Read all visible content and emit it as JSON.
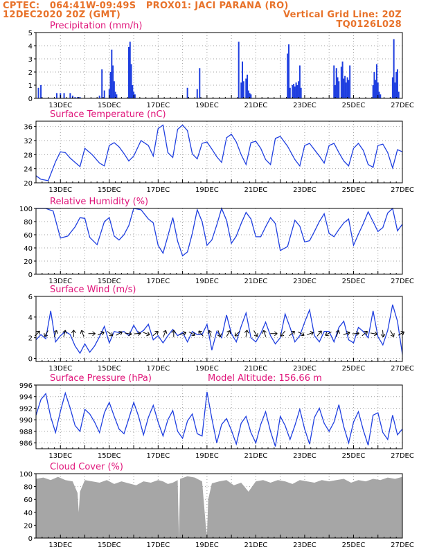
{
  "header": {
    "line1_left": "CPTEC:   064:41W-09:49S   PROX01: JACI PARANA (RO)",
    "line2_left": "12DEC2020 20Z (GMT)",
    "line2_right": "Vertical Grid Line: 20Z",
    "line3_right": "TQ0126L028",
    "color": "#e8722a"
  },
  "x_axis": {
    "tick_labels": [
      "13DEC",
      "15DEC",
      "17DEC",
      "19DEC",
      "21DEC",
      "23DEC",
      "25DEC",
      "27DEC"
    ],
    "tick_positions": [
      13,
      15,
      17,
      19,
      21,
      23,
      25,
      27
    ],
    "range": [
      12.0,
      27.0
    ],
    "units": "days of December 2020"
  },
  "colors": {
    "series": "#1f3fe0",
    "cloud": "#a6a6a6",
    "title": "#e0157a",
    "grid": "#a0a0a0"
  },
  "chart_data": [
    {
      "type": "bar",
      "id": "precip",
      "title": "Precipitation (mm/h)",
      "ylim": [
        0,
        5
      ],
      "yticks": [
        0,
        1,
        2,
        3,
        4,
        5
      ],
      "grid": true,
      "x": [
        12.1,
        12.2,
        12.85,
        13.0,
        13.15,
        13.4,
        13.5,
        13.6,
        13.7,
        13.8,
        14.6,
        14.7,
        14.8,
        15.0,
        15.05,
        15.1,
        15.15,
        15.2,
        15.25,
        15.3,
        15.8,
        15.85,
        15.9,
        15.95,
        16.0,
        16.05,
        18.2,
        18.6,
        18.7,
        20.3,
        20.4,
        20.45,
        20.5,
        20.6,
        20.65,
        20.7,
        20.75,
        20.8,
        22.3,
        22.35,
        22.4,
        22.5,
        22.55,
        22.6,
        22.65,
        22.7,
        22.75,
        22.8,
        22.85,
        24.2,
        24.25,
        24.3,
        24.35,
        24.4,
        24.5,
        24.55,
        24.6,
        24.65,
        24.7,
        24.75,
        24.8,
        24.85,
        25.8,
        25.85,
        25.9,
        25.95,
        26.0,
        26.05,
        26.1,
        26.6,
        26.65,
        26.7,
        26.75,
        26.8,
        26.85
      ],
      "values": [
        0.8,
        1.0,
        0.4,
        0.4,
        0.4,
        0.4,
        0.2,
        0.1,
        0.1,
        0.1,
        0.2,
        2.2,
        0.6,
        0.7,
        2.0,
        3.7,
        2.5,
        1.3,
        0.5,
        0.3,
        3.9,
        4.3,
        2.6,
        1.0,
        0.5,
        0.3,
        0.8,
        0.7,
        2.3,
        4.3,
        1.2,
        2.8,
        1.3,
        1.5,
        1.8,
        0.6,
        0.4,
        0.3,
        3.4,
        4.1,
        0.8,
        1.0,
        1.1,
        0.9,
        1.2,
        1.0,
        1.3,
        2.5,
        0.8,
        2.5,
        1.0,
        2.3,
        1.6,
        1.3,
        2.4,
        2.8,
        1.5,
        1.7,
        1.2,
        1.6,
        1.4,
        2.5,
        1.0,
        2.0,
        1.4,
        2.6,
        1.2,
        0.5,
        0.3,
        1.6,
        4.5,
        1.2,
        2.0,
        2.2,
        0.5
      ]
    },
    {
      "type": "line",
      "id": "temp",
      "title": "Surface Temperature (nC)",
      "ylim": [
        20,
        37.5
      ],
      "yticks": [
        20,
        24,
        28,
        32,
        36
      ],
      "grid": true,
      "x": [
        12.0,
        12.2,
        12.5,
        12.8,
        13.0,
        13.2,
        13.4,
        13.6,
        13.8,
        14.0,
        14.3,
        14.6,
        14.8,
        15.0,
        15.2,
        15.4,
        15.6,
        15.8,
        16.0,
        16.3,
        16.6,
        16.8,
        17.0,
        17.2,
        17.4,
        17.6,
        17.8,
        18.0,
        18.2,
        18.4,
        18.6,
        18.8,
        19.0,
        19.2,
        19.4,
        19.6,
        19.8,
        20.0,
        20.2,
        20.4,
        20.6,
        20.8,
        21.0,
        21.2,
        21.4,
        21.6,
        21.8,
        22.0,
        22.3,
        22.6,
        22.8,
        23.0,
        23.2,
        23.4,
        23.6,
        23.8,
        24.0,
        24.2,
        24.4,
        24.6,
        24.8,
        25.0,
        25.2,
        25.4,
        25.6,
        25.8,
        26.0,
        26.2,
        26.4,
        26.6,
        26.8,
        27.0
      ],
      "values": [
        22.0,
        21.0,
        20.6,
        26.0,
        28.8,
        28.6,
        27.0,
        25.8,
        24.6,
        29.8,
        28.0,
        25.6,
        24.8,
        30.6,
        31.4,
        30.2,
        28.3,
        26.2,
        27.6,
        32.0,
        30.6,
        27.6,
        35.4,
        36.4,
        28.6,
        27.2,
        35.2,
        36.4,
        34.8,
        28.2,
        26.8,
        31.2,
        31.6,
        29.6,
        27.4,
        25.8,
        32.8,
        33.8,
        31.6,
        28.0,
        25.2,
        31.4,
        31.8,
        29.8,
        26.6,
        25.2,
        32.6,
        33.2,
        30.4,
        26.6,
        24.8,
        30.6,
        31.2,
        29.4,
        27.6,
        25.6,
        30.6,
        31.2,
        28.6,
        26.2,
        24.8,
        29.8,
        31.2,
        29.2,
        25.2,
        24.4,
        30.6,
        31.0,
        28.6,
        24.2,
        29.4,
        28.8
      ]
    },
    {
      "type": "line",
      "id": "rh",
      "title": "Relative Humidity (%)",
      "ylim": [
        0,
        100
      ],
      "yticks": [
        0,
        20,
        40,
        60,
        80,
        100
      ],
      "grid": true,
      "x": [
        12.0,
        12.4,
        12.7,
        13.0,
        13.3,
        13.6,
        13.8,
        14.0,
        14.2,
        14.5,
        14.8,
        15.0,
        15.2,
        15.4,
        15.6,
        15.8,
        16.0,
        16.3,
        16.6,
        16.8,
        17.0,
        17.2,
        17.4,
        17.6,
        17.8,
        18.0,
        18.2,
        18.4,
        18.6,
        18.8,
        19.0,
        19.2,
        19.4,
        19.6,
        19.8,
        20.0,
        20.2,
        20.4,
        20.6,
        20.8,
        21.0,
        21.2,
        21.4,
        21.6,
        21.8,
        22.0,
        22.3,
        22.6,
        22.8,
        23.0,
        23.2,
        23.4,
        23.6,
        23.8,
        24.0,
        24.2,
        24.4,
        24.6,
        24.8,
        25.0,
        25.2,
        25.4,
        25.6,
        25.8,
        26.0,
        26.2,
        26.4,
        26.6,
        26.8,
        27.0
      ],
      "values": [
        100,
        100,
        96,
        55,
        58,
        72,
        86,
        85,
        56,
        45,
        80,
        86,
        58,
        52,
        60,
        74,
        100,
        98,
        84,
        78,
        44,
        32,
        58,
        86,
        50,
        28,
        34,
        62,
        98,
        80,
        44,
        52,
        75,
        100,
        82,
        47,
        58,
        77,
        94,
        84,
        57,
        57,
        72,
        86,
        77,
        36,
        42,
        82,
        73,
        49,
        51,
        65,
        80,
        92,
        62,
        57,
        68,
        78,
        84,
        44,
        61,
        77,
        95,
        80,
        65,
        71,
        93,
        100,
        66,
        76
      ]
    },
    {
      "type": "line",
      "id": "wind",
      "title": "Surface Wind (m/s)",
      "ylim": [
        -0.3,
        6
      ],
      "yticks": [
        0,
        2,
        4,
        6
      ],
      "grid": true,
      "x": [
        12.0,
        12.2,
        12.4,
        12.6,
        12.8,
        13.0,
        13.2,
        13.4,
        13.6,
        13.8,
        14.0,
        14.2,
        14.4,
        14.6,
        14.8,
        15.0,
        15.2,
        15.4,
        15.6,
        15.8,
        16.0,
        16.2,
        16.4,
        16.6,
        16.8,
        17.0,
        17.2,
        17.4,
        17.6,
        17.8,
        18.0,
        18.2,
        18.4,
        18.6,
        18.8,
        19.0,
        19.2,
        19.4,
        19.6,
        19.8,
        20.0,
        20.2,
        20.4,
        20.6,
        20.8,
        21.0,
        21.2,
        21.4,
        21.6,
        21.8,
        22.0,
        22.2,
        22.4,
        22.6,
        22.8,
        23.0,
        23.2,
        23.4,
        23.6,
        23.8,
        24.0,
        24.2,
        24.4,
        24.6,
        24.8,
        25.0,
        25.2,
        25.4,
        25.6,
        25.8,
        26.0,
        26.2,
        26.4,
        26.6,
        26.8,
        27.0
      ],
      "values": [
        1.8,
        2.3,
        1.9,
        4.6,
        1.6,
        2.2,
        2.6,
        2.3,
        1.2,
        0.5,
        1.4,
        0.6,
        1.2,
        2.1,
        3.1,
        1.5,
        2.6,
        2.5,
        2.6,
        2.2,
        3.2,
        2.4,
        2.7,
        3.3,
        1.8,
        2.2,
        1.5,
        2.2,
        2.8,
        2.2,
        2.5,
        1.6,
        2.6,
        2.3,
        2.3,
        3.3,
        0.8,
        2.6,
        2.0,
        4.2,
        2.4,
        1.6,
        3.1,
        4.4,
        2.0,
        1.6,
        2.4,
        3.5,
        2.2,
        1.4,
        2.0,
        4.3,
        3.0,
        1.6,
        2.2,
        3.5,
        4.7,
        2.2,
        1.6,
        2.6,
        2.6,
        1.6,
        3.0,
        3.6,
        1.8,
        1.5,
        3.0,
        2.6,
        2.0,
        4.6,
        2.1,
        1.3,
        2.7,
        5.2,
        3.6,
        0.4
      ],
      "arrow_direction_from_deg": [
        225,
        30,
        200,
        195,
        180,
        160,
        270,
        245,
        310,
        240,
        280,
        265,
        290,
        230,
        200,
        180,
        250,
        300,
        140,
        160,
        340,
        210,
        45,
        190,
        330,
        160,
        270,
        40,
        230,
        300,
        250,
        220,
        60,
        200,
        250,
        265,
        230,
        280,
        355,
        330,
        240
      ]
    },
    {
      "type": "line",
      "id": "pressure",
      "title": "Surface Pressure (hPa)",
      "annotation": "Model Altitude: 156.66 m",
      "ylim": [
        985,
        996
      ],
      "yticks": [
        986,
        988,
        990,
        992,
        994,
        996
      ],
      "grid": true,
      "x": [
        12.0,
        12.2,
        12.4,
        12.6,
        12.8,
        13.0,
        13.2,
        13.4,
        13.6,
        13.8,
        14.0,
        14.2,
        14.4,
        14.6,
        14.8,
        15.0,
        15.2,
        15.4,
        15.6,
        15.8,
        16.0,
        16.2,
        16.4,
        16.6,
        16.8,
        17.0,
        17.2,
        17.4,
        17.6,
        17.8,
        18.0,
        18.2,
        18.4,
        18.6,
        18.8,
        19.0,
        19.2,
        19.4,
        19.6,
        19.8,
        20.0,
        20.2,
        20.4,
        20.6,
        20.8,
        21.0,
        21.2,
        21.4,
        21.6,
        21.8,
        22.0,
        22.2,
        22.4,
        22.6,
        22.8,
        23.0,
        23.2,
        23.4,
        23.6,
        23.8,
        24.0,
        24.2,
        24.4,
        24.6,
        24.8,
        25.0,
        25.2,
        25.4,
        25.6,
        25.8,
        26.0,
        26.2,
        26.4,
        26.6,
        26.8,
        27.0
      ],
      "values": [
        990.8,
        993.5,
        994.5,
        990.5,
        987.8,
        991.5,
        994.6,
        992.0,
        989.0,
        988.0,
        991.8,
        991.0,
        989.6,
        987.8,
        991.2,
        993.0,
        990.6,
        988.4,
        987.6,
        990.2,
        993.0,
        990.6,
        987.4,
        990.4,
        992.5,
        989.6,
        987.2,
        990.0,
        991.6,
        988.0,
        986.8,
        989.8,
        991.0,
        987.6,
        987.2,
        994.8,
        990.2,
        986.0,
        989.2,
        990.2,
        988.2,
        985.8,
        989.4,
        990.6,
        987.8,
        986.0,
        989.2,
        991.4,
        988.0,
        985.4,
        990.6,
        989.0,
        986.6,
        989.0,
        991.8,
        988.4,
        985.8,
        990.4,
        992.0,
        989.4,
        988.0,
        989.6,
        992.6,
        988.8,
        986.0,
        989.6,
        991.4,
        988.2,
        985.6,
        990.8,
        991.2,
        987.8,
        986.6,
        990.8,
        987.4,
        988.4
      ]
    },
    {
      "type": "area",
      "id": "cloud",
      "title": "Cloud Cover (%)",
      "ylim": [
        0,
        100
      ],
      "yticks": [
        0,
        20,
        40,
        60,
        80,
        100
      ],
      "grid": true,
      "x": [
        12.0,
        12.3,
        12.6,
        12.9,
        13.2,
        13.5,
        13.7,
        13.75,
        13.8,
        14.0,
        14.3,
        14.6,
        14.9,
        15.2,
        15.5,
        15.8,
        16.1,
        16.4,
        16.7,
        17.0,
        17.2,
        17.4,
        17.6,
        17.8,
        17.85,
        17.9,
        18.2,
        18.5,
        18.8,
        18.95,
        19.0,
        19.05,
        19.2,
        19.5,
        19.8,
        20.1,
        20.4,
        20.7,
        21.0,
        21.3,
        21.6,
        21.9,
        22.2,
        22.5,
        22.8,
        23.1,
        23.4,
        23.7,
        24.0,
        24.3,
        24.6,
        24.9,
        25.2,
        25.5,
        25.8,
        26.1,
        26.4,
        26.7,
        27.0
      ],
      "values": [
        92,
        94,
        90,
        95,
        90,
        88,
        70,
        40,
        72,
        90,
        88,
        86,
        90,
        84,
        88,
        85,
        82,
        88,
        86,
        90,
        88,
        84,
        86,
        90,
        0,
        92,
        96,
        94,
        88,
        20,
        4,
        60,
        85,
        88,
        90,
        82,
        86,
        72,
        88,
        90,
        86,
        90,
        88,
        84,
        90,
        88,
        86,
        90,
        88,
        90,
        92,
        86,
        90,
        88,
        92,
        90,
        94,
        92,
        95
      ]
    }
  ]
}
